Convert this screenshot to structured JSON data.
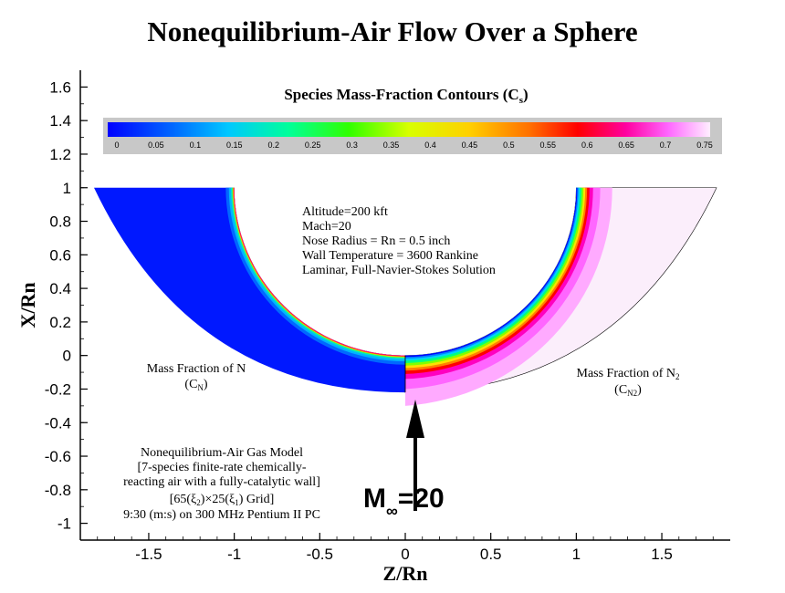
{
  "chart_data": {
    "type": "contour",
    "title": "Nonequilibrium-Air Flow Over a Sphere",
    "xlabel": "Z/Rn",
    "ylabel": "X/Rn",
    "xlim": [
      -1.9,
      1.9
    ],
    "ylim": [
      -1.1,
      1.7
    ],
    "xticks": [
      -1.5,
      -1,
      -0.5,
      0,
      0.5,
      1,
      1.5
    ],
    "yticks": [
      1.6,
      1.4,
      1.2,
      1,
      0.8,
      0.6,
      0.4,
      0.2,
      0,
      -0.2,
      -0.4,
      -0.6,
      -0.8,
      -1
    ],
    "colorbar": {
      "title_main": "Species Mass-Fraction Contours (C",
      "title_sub": "s",
      "title_close": ")",
      "levels": [
        0,
        0.05,
        0.1,
        0.15,
        0.2,
        0.25,
        0.3,
        0.35,
        0.4,
        0.45,
        0.5,
        0.55,
        0.6,
        0.65,
        0.7,
        0.75
      ],
      "min": 0,
      "max": 0.75
    },
    "geometry": {
      "body_radius": 1,
      "left_outer_top": [
        -1.82,
        1.0
      ],
      "right_outer_top": [
        1.82,
        1.0
      ],
      "left_shock_bottom": -0.22,
      "right_shock_bottom": -0.22
    },
    "conditions": [
      "Altitude=200 kft",
      "Mach=20",
      "Nose Radius = Rn = 0.5 inch",
      "Wall Temperature = 3600 Rankine",
      "Laminar, Full-Navier-Stokes Solution"
    ],
    "left_label": {
      "line1": "Mass Fraction of N",
      "line2_main": "(C",
      "line2_sub": "N",
      "line2_close": ")"
    },
    "right_label": {
      "line1_main": "Mass Fraction of N",
      "line1_sub": "2",
      "line2_main": "(C",
      "line2_sub": "N2",
      "line2_close": ")"
    },
    "model_text": {
      "line1": "Nonequilibrium-Air Gas Model",
      "line2": "[7-species finite-rate chemically-",
      "line3": "reacting air with a fully-catalytic wall]",
      "line4_a": "[65(ξ",
      "line4_b": "2",
      "line4_c": ")×25(ξ",
      "line4_d": "1",
      "line4_e": ") Grid]",
      "line5": "9:30 (m:s) on 300 MHz Pentium II PC"
    },
    "freestream": {
      "label": "M",
      "sub": "∞",
      "value": "=20"
    }
  }
}
